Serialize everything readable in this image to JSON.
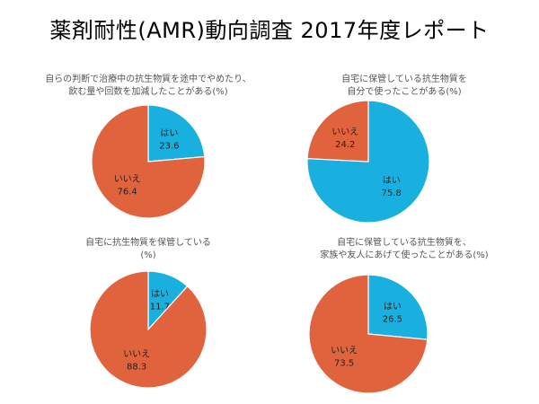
{
  "report_title": "薬剤耐性(AMR)動向調査 2017年度レポート",
  "colors": {
    "yes": "#19B0E0",
    "no": "#E1633D"
  },
  "chart_data": [
    {
      "type": "pie",
      "title": "自らの判断で治療中の抗生物質を途中でやめたり、\n飲む量や回数を加減したことがある(%)",
      "labels": [
        "はい",
        "いいえ"
      ],
      "values": [
        23.6,
        76.4
      ],
      "value_labels": [
        "23.6",
        "76.4"
      ]
    },
    {
      "type": "pie",
      "title": "自宅に保管している抗生物質を\n自分で使ったことがある(%)",
      "labels": [
        "はい",
        "いいえ"
      ],
      "values": [
        75.8,
        24.2
      ],
      "value_labels": [
        "75.8",
        "24.2"
      ]
    },
    {
      "type": "pie",
      "title": "自宅に抗生物質を保管している\n(%)",
      "labels": [
        "はい",
        "いいえ"
      ],
      "values": [
        11.7,
        88.3
      ],
      "value_labels": [
        "11.7",
        "88.3"
      ]
    },
    {
      "type": "pie",
      "title": "自宅に保管している抗生物質を、\n家族や友人にあげて使ったことがある(%)",
      "labels": [
        "はい",
        "いいえ"
      ],
      "values": [
        26.5,
        73.5
      ],
      "value_labels": [
        "26.5",
        "73.5"
      ]
    }
  ]
}
